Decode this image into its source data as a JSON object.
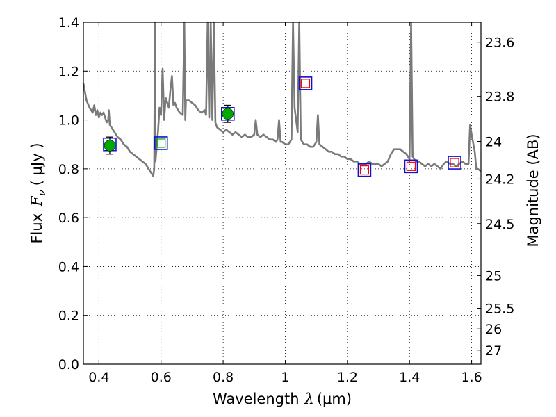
{
  "chart_data": {
    "type": "scatter",
    "xlabel": {
      "prefix": "Wavelength",
      "symbol": "λ",
      "unit": "(μm)"
    },
    "ylabel": {
      "prefix": "Flux",
      "symbol": "F",
      "subscript": "ν",
      "unit": "( μJy )"
    },
    "y2label": "Magnitude (AB)",
    "xlim": [
      0.35,
      1.63
    ],
    "ylim": [
      0.0,
      1.4
    ],
    "grid": true,
    "xticks": [
      0.4,
      0.6,
      0.8,
      1.0,
      1.2,
      1.4,
      1.6
    ],
    "xtick_labels": [
      "0.4",
      "0.6",
      "0.8",
      "1",
      "1.2",
      "1.4",
      "1.6"
    ],
    "yticks": [
      0.0,
      0.2,
      0.4,
      0.6,
      0.8,
      1.0,
      1.2,
      1.4
    ],
    "ytick_labels": [
      "0.0",
      "0.2",
      "0.4",
      "0.6",
      "0.8",
      "1.0",
      "1.2",
      "1.4"
    ],
    "magnitude_ticks": [
      {
        "mag": 23.6,
        "label": "23.6"
      },
      {
        "mag": 23.8,
        "label": "23.8"
      },
      {
        "mag": 24.0,
        "label": "24"
      },
      {
        "mag": 24.2,
        "label": "24.2"
      },
      {
        "mag": 24.5,
        "label": "24.5"
      },
      {
        "mag": 25.0,
        "label": "25"
      },
      {
        "mag": 25.5,
        "label": "25.5"
      },
      {
        "mag": 26.0,
        "label": "26"
      },
      {
        "mag": 27.0,
        "label": "27"
      }
    ],
    "series": [
      {
        "kind": "model_spectrum",
        "color": "#7a7a7a",
        "points": [
          [
            0.35,
            1.15
          ],
          [
            0.36,
            1.08
          ],
          [
            0.37,
            1.05
          ],
          [
            0.38,
            1.03
          ],
          [
            0.385,
            1.06
          ],
          [
            0.39,
            1.02
          ],
          [
            0.395,
            1.04
          ],
          [
            0.4,
            1.01
          ],
          [
            0.405,
            1.03
          ],
          [
            0.41,
            1.02
          ],
          [
            0.415,
            1.03
          ],
          [
            0.42,
            1.01
          ],
          [
            0.425,
            0.99
          ],
          [
            0.43,
            1.0
          ],
          [
            0.432,
            1.04
          ],
          [
            0.435,
            0.98
          ],
          [
            0.44,
            0.97
          ],
          [
            0.45,
            0.95
          ],
          [
            0.46,
            0.93
          ],
          [
            0.47,
            0.92
          ],
          [
            0.48,
            0.9
          ],
          [
            0.49,
            0.89
          ],
          [
            0.5,
            0.87
          ],
          [
            0.51,
            0.86
          ],
          [
            0.52,
            0.85
          ],
          [
            0.53,
            0.84
          ],
          [
            0.54,
            0.83
          ],
          [
            0.55,
            0.82
          ],
          [
            0.56,
            0.8
          ],
          [
            0.57,
            0.78
          ],
          [
            0.575,
            0.77
          ],
          [
            0.578,
            0.8
          ],
          [
            0.58,
            1.45
          ],
          [
            0.582,
            0.83
          ],
          [
            0.59,
            0.95
          ],
          [
            0.595,
            1.05
          ],
          [
            0.6,
            1.02
          ],
          [
            0.605,
            1.21
          ],
          [
            0.61,
            1.0
          ],
          [
            0.615,
            1.09
          ],
          [
            0.62,
            1.07
          ],
          [
            0.625,
            1.05
          ],
          [
            0.63,
            1.12
          ],
          [
            0.635,
            1.18
          ],
          [
            0.64,
            1.06
          ],
          [
            0.645,
            1.07
          ],
          [
            0.65,
            1.05
          ],
          [
            0.66,
            1.03
          ],
          [
            0.67,
            1.02
          ],
          [
            0.675,
            1.45
          ],
          [
            0.678,
            1.0
          ],
          [
            0.68,
            1.08
          ],
          [
            0.69,
            1.08
          ],
          [
            0.7,
            1.07
          ],
          [
            0.71,
            1.06
          ],
          [
            0.72,
            1.04
          ],
          [
            0.73,
            1.03
          ],
          [
            0.74,
            1.04
          ],
          [
            0.745,
            1.02
          ],
          [
            0.75,
            1.45
          ],
          [
            0.755,
            1.01
          ],
          [
            0.76,
            1.45
          ],
          [
            0.765,
            1.0
          ],
          [
            0.77,
            1.45
          ],
          [
            0.775,
            0.99
          ],
          [
            0.78,
            0.97
          ],
          [
            0.79,
            0.96
          ],
          [
            0.8,
            0.95
          ],
          [
            0.81,
            0.96
          ],
          [
            0.82,
            0.95
          ],
          [
            0.83,
            0.94
          ],
          [
            0.84,
            0.95
          ],
          [
            0.85,
            0.94
          ],
          [
            0.86,
            0.93
          ],
          [
            0.87,
            0.94
          ],
          [
            0.88,
            0.93
          ],
          [
            0.89,
            0.93
          ],
          [
            0.9,
            0.94
          ],
          [
            0.905,
            1.0
          ],
          [
            0.91,
            0.94
          ],
          [
            0.92,
            0.93
          ],
          [
            0.93,
            0.94
          ],
          [
            0.94,
            0.93
          ],
          [
            0.95,
            0.92
          ],
          [
            0.96,
            0.92
          ],
          [
            0.97,
            0.91
          ],
          [
            0.975,
            0.92
          ],
          [
            0.98,
            1.0
          ],
          [
            0.985,
            0.91
          ],
          [
            0.99,
            0.91
          ],
          [
            1.0,
            0.9
          ],
          [
            1.01,
            0.9
          ],
          [
            1.02,
            0.92
          ],
          [
            1.025,
            1.45
          ],
          [
            1.03,
            1.05
          ],
          [
            1.04,
            0.95
          ],
          [
            1.045,
            1.45
          ],
          [
            1.05,
            0.92
          ],
          [
            1.06,
            0.9
          ],
          [
            1.07,
            0.9
          ],
          [
            1.08,
            0.89
          ],
          [
            1.09,
            0.89
          ],
          [
            1.1,
            0.91
          ],
          [
            1.105,
            1.02
          ],
          [
            1.11,
            0.9
          ],
          [
            1.12,
            0.89
          ],
          [
            1.13,
            0.88
          ],
          [
            1.14,
            0.87
          ],
          [
            1.15,
            0.87
          ],
          [
            1.16,
            0.86
          ],
          [
            1.17,
            0.86
          ],
          [
            1.18,
            0.85
          ],
          [
            1.19,
            0.85
          ],
          [
            1.2,
            0.84
          ],
          [
            1.21,
            0.84
          ],
          [
            1.22,
            0.83
          ],
          [
            1.23,
            0.83
          ],
          [
            1.24,
            0.82
          ],
          [
            1.25,
            0.82
          ],
          [
            1.26,
            0.82
          ],
          [
            1.27,
            0.83
          ],
          [
            1.28,
            0.82
          ],
          [
            1.29,
            0.82
          ],
          [
            1.3,
            0.82
          ],
          [
            1.31,
            0.81
          ],
          [
            1.32,
            0.82
          ],
          [
            1.33,
            0.83
          ],
          [
            1.34,
            0.86
          ],
          [
            1.35,
            0.88
          ],
          [
            1.36,
            0.88
          ],
          [
            1.37,
            0.88
          ],
          [
            1.38,
            0.87
          ],
          [
            1.39,
            0.86
          ],
          [
            1.4,
            0.84
          ],
          [
            1.405,
            1.45
          ],
          [
            1.41,
            0.85
          ],
          [
            1.42,
            0.83
          ],
          [
            1.43,
            0.83
          ],
          [
            1.44,
            0.82
          ],
          [
            1.45,
            0.81
          ],
          [
            1.46,
            0.82
          ],
          [
            1.47,
            0.81
          ],
          [
            1.48,
            0.82
          ],
          [
            1.49,
            0.81
          ],
          [
            1.5,
            0.8
          ],
          [
            1.51,
            0.82
          ],
          [
            1.52,
            0.83
          ],
          [
            1.53,
            0.82
          ],
          [
            1.54,
            0.82
          ],
          [
            1.55,
            0.81
          ],
          [
            1.56,
            0.82
          ],
          [
            1.57,
            0.83
          ],
          [
            1.58,
            0.82
          ],
          [
            1.59,
            0.82
          ],
          [
            1.595,
            0.98
          ],
          [
            1.6,
            0.94
          ],
          [
            1.61,
            0.87
          ],
          [
            1.615,
            0.8
          ],
          [
            1.62,
            0.8
          ],
          [
            1.63,
            0.79
          ]
        ]
      },
      {
        "kind": "model_bandpass_squares",
        "edge": "#1010d0",
        "inner_edge": "#ff0000",
        "points": [
          [
            0.6,
            0.905
          ],
          [
            1.065,
            1.15
          ],
          [
            1.255,
            0.795
          ],
          [
            1.405,
            0.81
          ],
          [
            1.545,
            0.825
          ]
        ]
      },
      {
        "kind": "observed_points",
        "color": "#00aa00",
        "points": [
          {
            "x": 0.435,
            "y": 0.895,
            "yerr": 0.035
          },
          {
            "x": 0.815,
            "y": 1.025,
            "yerr": 0.035
          }
        ]
      }
    ],
    "observed_squares": [
      [
        0.435,
        0.9
      ],
      [
        0.815,
        1.025
      ]
    ]
  }
}
